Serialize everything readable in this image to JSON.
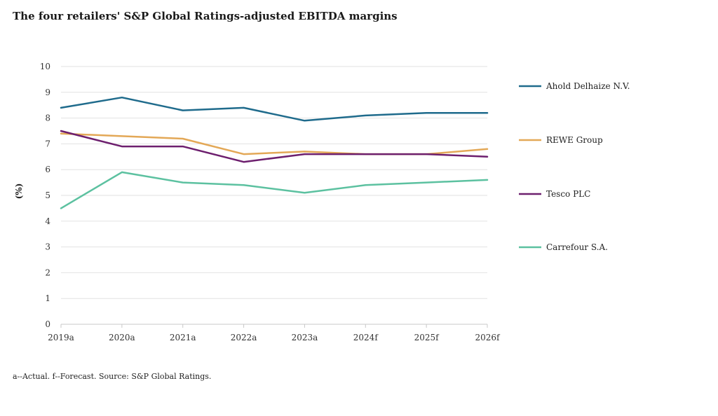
{
  "chart_data": {
    "type": "line",
    "title": "The four retailers' S&P Global Ratings-adjusted EBITDA margins",
    "xlabel": "",
    "ylabel": "(%)",
    "categories": [
      "2019a",
      "2020a",
      "2021a",
      "2022a",
      "2023a",
      "2024f",
      "2025f",
      "2026f"
    ],
    "ylim": [
      0,
      10
    ],
    "yticks": [
      0,
      1,
      2,
      3,
      4,
      5,
      6,
      7,
      8,
      9,
      10
    ],
    "grid": true,
    "legend_position": "right",
    "series": [
      {
        "name": "Ahold Delhaize N.V.",
        "color": "#1f6b8c",
        "values": [
          8.4,
          8.8,
          8.3,
          8.4,
          7.9,
          8.1,
          8.2,
          8.2
        ]
      },
      {
        "name": "REWE Group",
        "color": "#e3a857",
        "values": [
          7.4,
          7.3,
          7.2,
          6.6,
          6.7,
          6.6,
          6.6,
          6.8
        ]
      },
      {
        "name": "Tesco PLC",
        "color": "#6d1f6e",
        "values": [
          7.5,
          6.9,
          6.9,
          6.3,
          6.6,
          6.6,
          6.6,
          6.5
        ]
      },
      {
        "name": "Carrefour S.A.",
        "color": "#5cc1a0",
        "values": [
          4.5,
          5.9,
          5.5,
          5.4,
          5.1,
          5.4,
          5.5,
          5.6
        ]
      }
    ],
    "footnote": "a--Actual. f--Forecast. Source: S&P Global Ratings."
  }
}
